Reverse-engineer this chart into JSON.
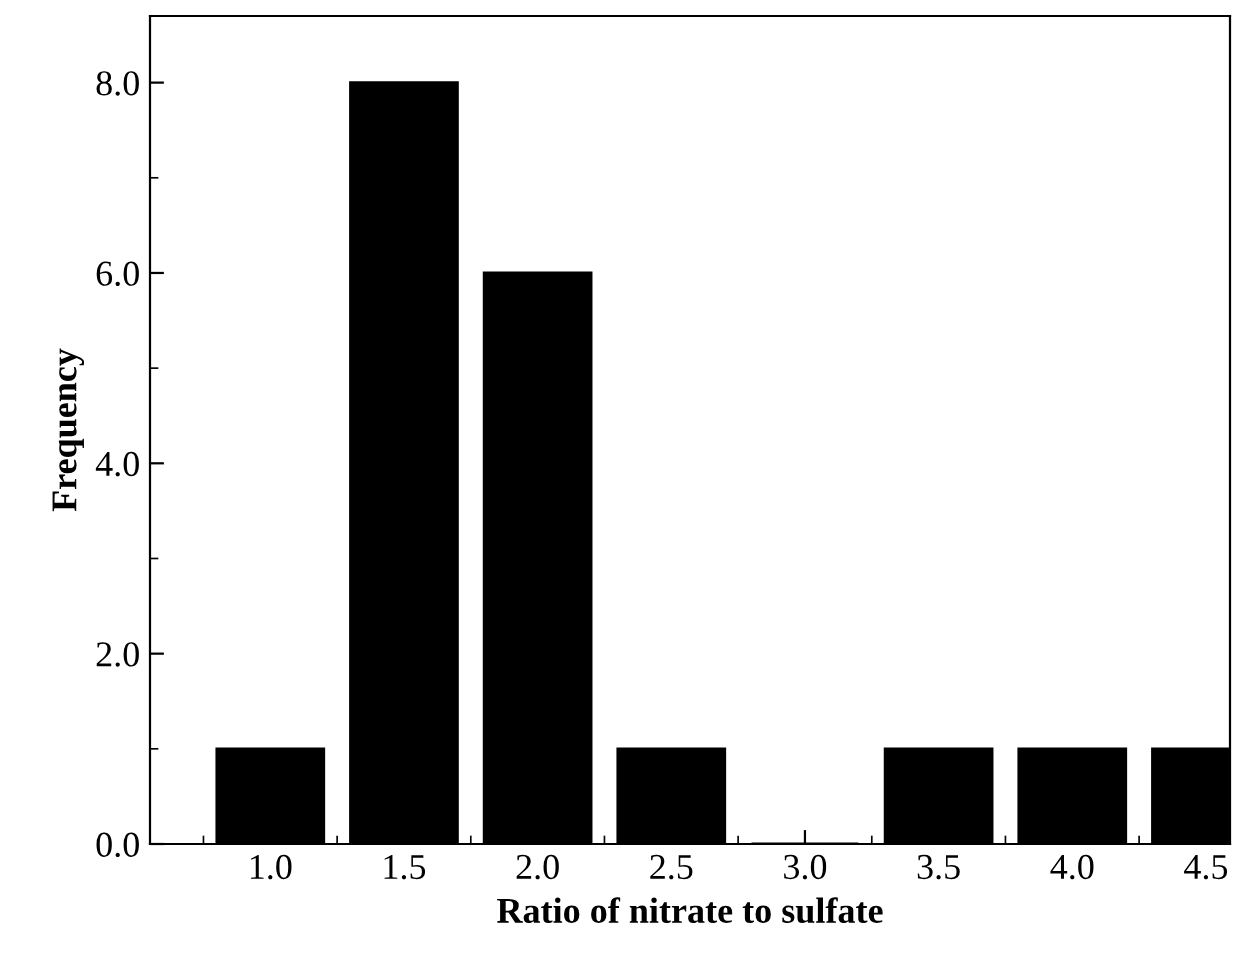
{
  "chart_data": {
    "type": "bar",
    "xlabel": "Ratio of nitrate to sulfate",
    "ylabel": "Frequency",
    "x": [
      1.0,
      1.5,
      2.0,
      2.5,
      3.0,
      3.5,
      4.0,
      4.5
    ],
    "values": [
      1,
      8,
      6,
      1,
      0,
      1,
      1,
      1
    ],
    "color": "#000000",
    "xlim": [
      0.55,
      4.59
    ],
    "xticks": [
      {
        "value": 1.0,
        "label": "1.0"
      },
      {
        "value": 1.5,
        "label": "1.5"
      },
      {
        "value": 2.0,
        "label": "2.0"
      },
      {
        "value": 2.5,
        "label": "2.5"
      },
      {
        "value": 3.0,
        "label": "3.0"
      },
      {
        "value": 3.5,
        "label": "3.5"
      },
      {
        "value": 4.0,
        "label": "4.0"
      },
      {
        "value": 4.5,
        "label": "4.5"
      }
    ],
    "ylim": [
      0,
      8.7
    ],
    "yticks": [
      {
        "value": 0,
        "label": "0.0"
      },
      {
        "value": 2,
        "label": "2.0"
      },
      {
        "value": 4,
        "label": "4.0"
      },
      {
        "value": 6,
        "label": "6.0"
      },
      {
        "value": 8,
        "label": "8.0"
      }
    ],
    "grid": false,
    "legend": false
  }
}
